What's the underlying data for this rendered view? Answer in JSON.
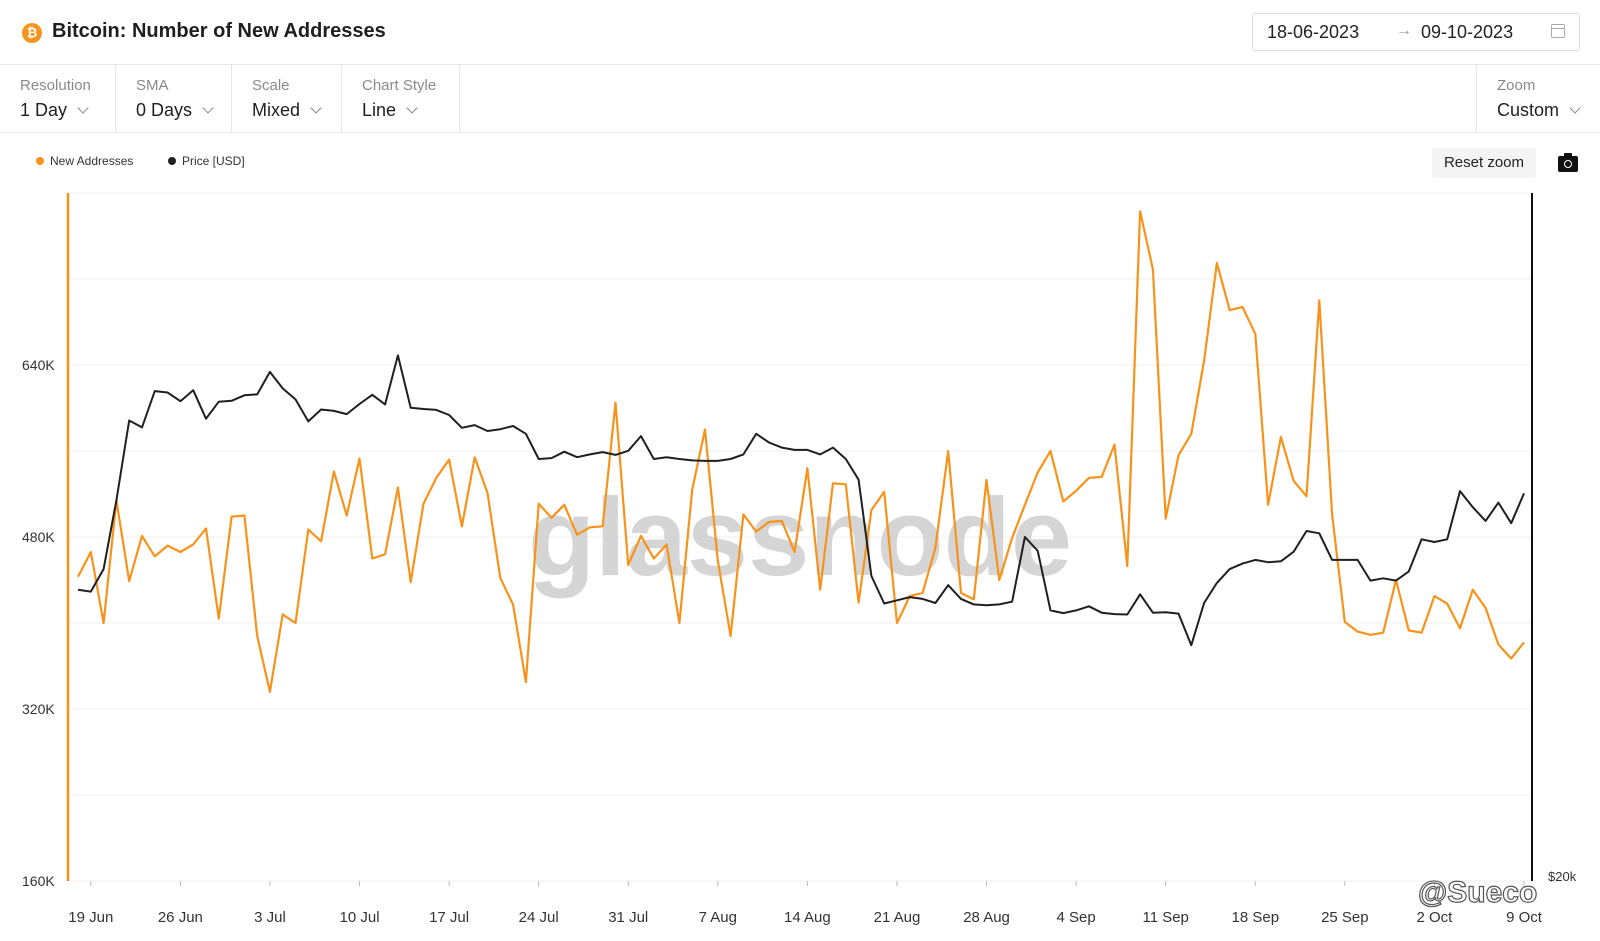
{
  "header": {
    "coin_icon": "bitcoin-icon",
    "coin_symbol": "₿",
    "title": "Bitcoin: Number of New Addresses",
    "date_from": "18-06-2023",
    "date_arrow": "→",
    "date_to": "09-10-2023",
    "calendar_icon": "calendar-icon"
  },
  "controls": {
    "resolution": {
      "label": "Resolution",
      "value": "1 Day"
    },
    "sma": {
      "label": "SMA",
      "value": "0 Days"
    },
    "scale": {
      "label": "Scale",
      "value": "Mixed"
    },
    "chart_style": {
      "label": "Chart Style",
      "value": "Line"
    },
    "zoom": {
      "label": "Zoom",
      "value": "Custom"
    }
  },
  "toolbar": {
    "reset_zoom": "Reset zoom",
    "camera_icon": "camera-icon"
  },
  "watermark": {
    "brand": "glassnode",
    "author": "@Sueco",
    "author_icon": "brand-mark-icon"
  },
  "colors": {
    "new_addresses": "#f7931a",
    "price": "#1f1f1f",
    "grid": "#efefef"
  },
  "chart_data": {
    "type": "line",
    "title": "Bitcoin: Number of New Addresses",
    "legend_position": "top-left",
    "grid": true,
    "x": [
      "2023-06-18",
      "2023-06-19",
      "2023-06-20",
      "2023-06-21",
      "2023-06-22",
      "2023-06-23",
      "2023-06-24",
      "2023-06-25",
      "2023-06-26",
      "2023-06-27",
      "2023-06-28",
      "2023-06-29",
      "2023-06-30",
      "2023-07-01",
      "2023-07-02",
      "2023-07-03",
      "2023-07-04",
      "2023-07-05",
      "2023-07-06",
      "2023-07-07",
      "2023-07-08",
      "2023-07-09",
      "2023-07-10",
      "2023-07-11",
      "2023-07-12",
      "2023-07-13",
      "2023-07-14",
      "2023-07-15",
      "2023-07-16",
      "2023-07-17",
      "2023-07-18",
      "2023-07-19",
      "2023-07-20",
      "2023-07-21",
      "2023-07-22",
      "2023-07-23",
      "2023-07-24",
      "2023-07-25",
      "2023-07-26",
      "2023-07-27",
      "2023-07-28",
      "2023-07-29",
      "2023-07-30",
      "2023-07-31",
      "2023-08-01",
      "2023-08-02",
      "2023-08-03",
      "2023-08-04",
      "2023-08-05",
      "2023-08-06",
      "2023-08-07",
      "2023-08-08",
      "2023-08-09",
      "2023-08-10",
      "2023-08-11",
      "2023-08-12",
      "2023-08-13",
      "2023-08-14",
      "2023-08-15",
      "2023-08-16",
      "2023-08-17",
      "2023-08-18",
      "2023-08-19",
      "2023-08-20",
      "2023-08-21",
      "2023-08-22",
      "2023-08-23",
      "2023-08-24",
      "2023-08-25",
      "2023-08-26",
      "2023-08-27",
      "2023-08-28",
      "2023-08-29",
      "2023-08-30",
      "2023-08-31",
      "2023-09-01",
      "2023-09-02",
      "2023-09-03",
      "2023-09-04",
      "2023-09-05",
      "2023-09-06",
      "2023-09-07",
      "2023-09-08",
      "2023-09-09",
      "2023-09-10",
      "2023-09-11",
      "2023-09-12",
      "2023-09-13",
      "2023-09-14",
      "2023-09-15",
      "2023-09-16",
      "2023-09-17",
      "2023-09-18",
      "2023-09-19",
      "2023-09-20",
      "2023-09-21",
      "2023-09-22",
      "2023-09-23",
      "2023-09-24",
      "2023-09-25",
      "2023-09-26",
      "2023-09-27",
      "2023-09-28",
      "2023-09-29",
      "2023-09-30",
      "2023-10-01",
      "2023-10-02",
      "2023-10-03",
      "2023-10-04",
      "2023-10-05",
      "2023-10-06",
      "2023-10-07",
      "2023-10-08",
      "2023-10-09"
    ],
    "x_tick_labels": [
      {
        "date": "2023-06-19",
        "label": "19 Jun"
      },
      {
        "date": "2023-06-26",
        "label": "26 Jun"
      },
      {
        "date": "2023-07-03",
        "label": "3 Jul"
      },
      {
        "date": "2023-07-10",
        "label": "10 Jul"
      },
      {
        "date": "2023-07-17",
        "label": "17 Jul"
      },
      {
        "date": "2023-07-24",
        "label": "24 Jul"
      },
      {
        "date": "2023-07-31",
        "label": "31 Jul"
      },
      {
        "date": "2023-08-07",
        "label": "7 Aug"
      },
      {
        "date": "2023-08-14",
        "label": "14 Aug"
      },
      {
        "date": "2023-08-21",
        "label": "21 Aug"
      },
      {
        "date": "2023-08-28",
        "label": "28 Aug"
      },
      {
        "date": "2023-09-04",
        "label": "4 Sep"
      },
      {
        "date": "2023-09-11",
        "label": "11 Sep"
      },
      {
        "date": "2023-09-18",
        "label": "18 Sep"
      },
      {
        "date": "2023-09-25",
        "label": "25 Sep"
      },
      {
        "date": "2023-10-02",
        "label": "2 Oct"
      },
      {
        "date": "2023-10-09",
        "label": "9 Oct"
      }
    ],
    "y_left": {
      "ticks": [
        {
          "value": 160000,
          "label": "160K"
        },
        {
          "value": 320000,
          "label": "320K"
        },
        {
          "value": 480000,
          "label": "480K"
        },
        {
          "value": 640000,
          "label": "640K"
        }
      ],
      "range": [
        160000,
        800000
      ]
    },
    "y_right": {
      "ticks": [
        {
          "value": 20000,
          "label": "$20k"
        }
      ],
      "range": [
        20000,
        35000
      ]
    },
    "series": [
      {
        "name": "New Addresses",
        "axis": "left",
        "color": "#f7931a",
        "values": [
          443000,
          466000,
          400000,
          514000,
          439000,
          481000,
          462000,
          472000,
          466000,
          473000,
          488000,
          404000,
          499000,
          500000,
          388000,
          336000,
          408000,
          400000,
          487000,
          476000,
          541000,
          500000,
          553000,
          460000,
          464000,
          526000,
          438000,
          511000,
          535000,
          552000,
          490000,
          554000,
          521000,
          442000,
          417000,
          345000,
          511000,
          498000,
          510000,
          482000,
          489000,
          490000,
          605000,
          454000,
          481000,
          460000,
          473000,
          400000,
          524000,
          580000,
          458000,
          388000,
          501000,
          485000,
          494000,
          495000,
          466000,
          544000,
          431000,
          530000,
          529000,
          419000,
          505000,
          522000,
          400000,
          425000,
          428000,
          470000,
          560000,
          428000,
          422000,
          533000,
          440000,
          479000,
          510000,
          540000,
          560000,
          513000,
          523000,
          535000,
          536000,
          566000,
          453000,
          783000,
          729000,
          497000,
          556000,
          576000,
          644000,
          735000,
          691000,
          694000,
          669000,
          510000,
          573000,
          532000,
          518000,
          700000,
          501000,
          401000,
          392000,
          389000,
          391000,
          440000,
          393000,
          391000,
          425000,
          418000,
          395000,
          431000,
          414000,
          380000,
          367000,
          382000
        ]
      },
      {
        "name": "Price [USD]",
        "axis": "right",
        "color": "#1f1f1f",
        "values": [
          26350,
          26310,
          26800,
          28300,
          30040,
          29890,
          30680,
          30650,
          30460,
          30700,
          30080,
          30450,
          30470,
          30590,
          30610,
          31100,
          30740,
          30500,
          30020,
          30280,
          30250,
          30180,
          30400,
          30600,
          30390,
          31460,
          30320,
          30290,
          30270,
          30160,
          29880,
          29940,
          29810,
          29850,
          29920,
          29750,
          29200,
          29220,
          29360,
          29240,
          29300,
          29350,
          29290,
          29380,
          29700,
          29200,
          29240,
          29200,
          29170,
          29160,
          29160,
          29200,
          29300,
          29750,
          29560,
          29450,
          29400,
          29400,
          29300,
          29450,
          29200,
          28750,
          26650,
          26050,
          26120,
          26190,
          26150,
          26060,
          26450,
          26150,
          26030,
          26010,
          26030,
          26090,
          27500,
          27200,
          25900,
          25840,
          25900,
          25990,
          25850,
          25820,
          25810,
          26250,
          25850,
          25860,
          25830,
          25140,
          26060,
          26500,
          26800,
          26920,
          27000,
          26950,
          26970,
          27180,
          27630,
          27580,
          27000,
          27000,
          27000,
          26550,
          26600,
          26550,
          26750,
          27450,
          27390,
          27450,
          28500,
          28150,
          27850,
          28250,
          27800,
          28450
        ]
      }
    ]
  }
}
